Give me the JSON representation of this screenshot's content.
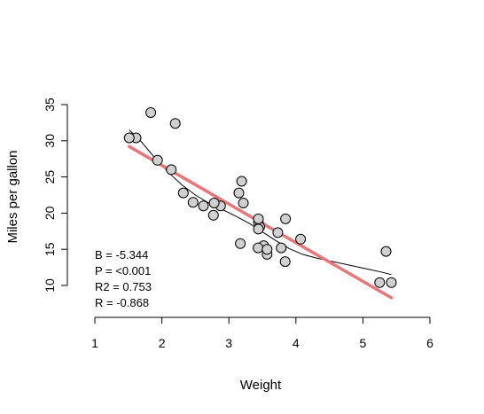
{
  "chart_data": {
    "type": "scatter",
    "title": "",
    "xlabel": "Weight",
    "ylabel": "Miles per gallon",
    "xlim": [
      1,
      6
    ],
    "ylim": [
      10,
      35
    ],
    "xticks": [
      1,
      2,
      3,
      4,
      5,
      6
    ],
    "yticks": [
      10,
      15,
      20,
      25,
      30,
      35
    ],
    "grid": false,
    "points": [
      {
        "x": 2.62,
        "y": 21.0
      },
      {
        "x": 2.875,
        "y": 21.0
      },
      {
        "x": 2.32,
        "y": 22.8
      },
      {
        "x": 3.215,
        "y": 21.4
      },
      {
        "x": 3.44,
        "y": 18.7
      },
      {
        "x": 3.46,
        "y": 18.1
      },
      {
        "x": 3.57,
        "y": 14.3
      },
      {
        "x": 3.19,
        "y": 24.4
      },
      {
        "x": 3.15,
        "y": 22.8
      },
      {
        "x": 3.44,
        "y": 19.2
      },
      {
        "x": 3.44,
        "y": 17.8
      },
      {
        "x": 4.07,
        "y": 16.4
      },
      {
        "x": 3.73,
        "y": 17.3
      },
      {
        "x": 3.78,
        "y": 15.2
      },
      {
        "x": 5.25,
        "y": 10.4
      },
      {
        "x": 5.424,
        "y": 10.4
      },
      {
        "x": 5.345,
        "y": 14.7
      },
      {
        "x": 2.2,
        "y": 32.4
      },
      {
        "x": 1.615,
        "y": 30.4
      },
      {
        "x": 1.835,
        "y": 33.9
      },
      {
        "x": 2.465,
        "y": 21.5
      },
      {
        "x": 3.52,
        "y": 15.5
      },
      {
        "x": 3.435,
        "y": 15.2
      },
      {
        "x": 3.84,
        "y": 13.3
      },
      {
        "x": 3.845,
        "y": 19.2
      },
      {
        "x": 1.935,
        "y": 27.3
      },
      {
        "x": 2.14,
        "y": 26.0
      },
      {
        "x": 1.513,
        "y": 30.4
      },
      {
        "x": 3.17,
        "y": 15.8
      },
      {
        "x": 2.77,
        "y": 19.7
      },
      {
        "x": 3.57,
        "y": 15.0
      },
      {
        "x": 2.78,
        "y": 21.4
      }
    ],
    "regression_line": {
      "x": [
        1.513,
        5.424
      ],
      "y": [
        29.2,
        8.3
      ]
    },
    "smooth_line": {
      "x": [
        1.513,
        1.7,
        1.9,
        2.1,
        2.3,
        2.5,
        2.7,
        2.9,
        3.1,
        3.3,
        3.5,
        3.7,
        3.9,
        4.1,
        4.3,
        4.5,
        4.7,
        4.9,
        5.1,
        5.3,
        5.424
      ],
      "y": [
        31.5,
        29.8,
        27.6,
        25.6,
        23.9,
        22.5,
        21.4,
        20.5,
        19.6,
        18.6,
        17.4,
        16.2,
        15.1,
        14.3,
        13.8,
        13.4,
        13.0,
        12.6,
        12.2,
        11.8,
        11.5
      ]
    },
    "annotations": [
      "B = -5.344",
      "P = <0.001",
      "R2 = 0.753",
      "R = -0.868"
    ]
  }
}
